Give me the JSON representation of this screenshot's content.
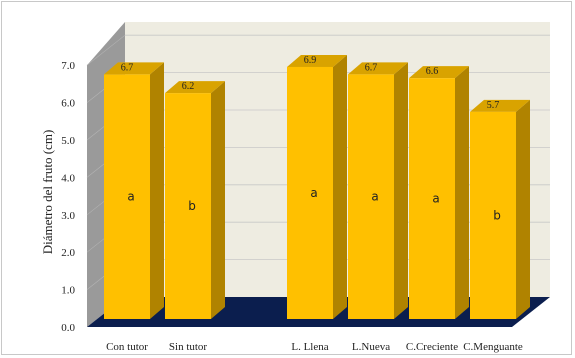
{
  "chart_data": {
    "type": "bar",
    "title": "",
    "xlabel": "",
    "ylabel": "Diámetro del  fruto (cm)",
    "ylim": [
      0,
      7
    ],
    "yticks": [
      "0.0",
      "1.0",
      "2.0",
      "3.0",
      "4.0",
      "5.0",
      "6.0",
      "7.0"
    ],
    "grid": true,
    "three_d": true,
    "groups": [
      {
        "bars": [
          {
            "category": "Con tutor",
            "value": 6.7,
            "value_label": "6.7",
            "letter": "a"
          },
          {
            "category": "Sin tutor",
            "value": 6.2,
            "value_label": "6.2",
            "letter": "b"
          }
        ]
      },
      {
        "bars": [
          {
            "category": "L. Llena",
            "value": 6.9,
            "value_label": "6.9",
            "letter": "a"
          },
          {
            "category": "L.Nueva",
            "value": 6.7,
            "value_label": "6.7",
            "letter": "a"
          },
          {
            "category": "C.Creciente",
            "value": 6.6,
            "value_label": "6.6",
            "letter": "a"
          },
          {
            "category": "C.Menguante",
            "value": 5.7,
            "value_label": "5.7",
            "letter": "b"
          }
        ]
      }
    ],
    "colors": {
      "bar_front": "#FFC000",
      "bar_side": "#B08300",
      "bar_top": "#D9A300",
      "floor": "#0B1E4E",
      "back_wall": "#EEECE1",
      "side_wall": "#9A9A9A",
      "gridline": "#C8C8C8"
    }
  }
}
